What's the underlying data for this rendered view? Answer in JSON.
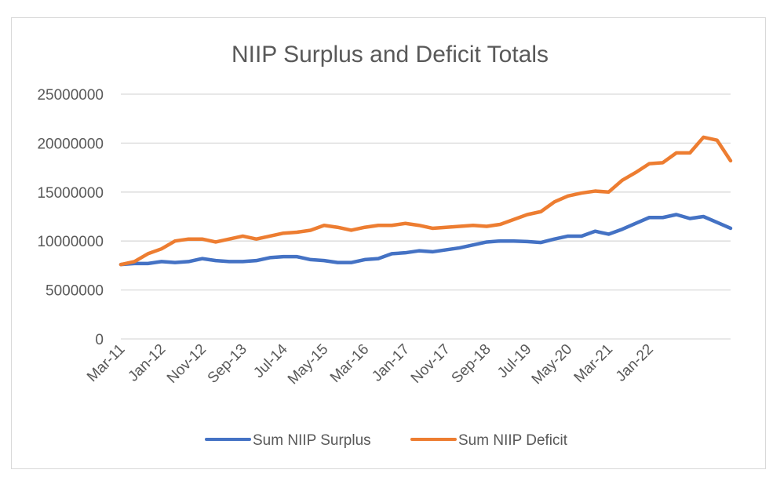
{
  "chart_data": {
    "type": "line",
    "title": "NIIP Surplus and Deficit Totals",
    "xlabel": "",
    "ylabel": "",
    "ylim": [
      0,
      25000000
    ],
    "y_ticks": [
      0,
      5000000,
      10000000,
      15000000,
      20000000,
      25000000
    ],
    "y_tick_labels": [
      "0",
      "5000000",
      "10000000",
      "15000000",
      "20000000",
      "25000000"
    ],
    "x_tick_labels": [
      "Mar-11",
      "Jan-12",
      "Nov-12",
      "Sep-13",
      "Jul-14",
      "May-15",
      "Mar-16",
      "Jan-17",
      "Nov-17",
      "Sep-18",
      "Jul-19",
      "May-20",
      "Mar-21",
      "Jan-22"
    ],
    "x_tick_step": 3,
    "grid": true,
    "legend_position": "bottom",
    "series": [
      {
        "name": "Sum NIIP Surplus",
        "color": "#4472c4",
        "values": [
          7600000,
          7700000,
          7700000,
          7900000,
          7800000,
          7900000,
          8200000,
          8000000,
          7900000,
          7900000,
          8000000,
          8300000,
          8400000,
          8400000,
          8100000,
          8000000,
          7800000,
          7800000,
          8100000,
          8200000,
          8700000,
          8800000,
          9000000,
          8900000,
          9100000,
          9300000,
          9600000,
          9900000,
          10000000,
          10000000,
          9950000,
          9850000,
          10200000,
          10500000,
          10500000,
          11000000,
          10700000,
          11200000,
          11800000,
          12400000,
          12400000,
          12700000,
          12300000,
          12500000,
          11900000,
          11300000
        ]
      },
      {
        "name": "Sum NIIP Deficit",
        "color": "#ed7d31",
        "values": [
          7600000,
          7900000,
          8700000,
          9200000,
          10000000,
          10200000,
          10200000,
          9900000,
          10200000,
          10500000,
          10200000,
          10500000,
          10800000,
          10900000,
          11100000,
          11600000,
          11400000,
          11100000,
          11400000,
          11600000,
          11600000,
          11800000,
          11600000,
          11300000,
          11400000,
          11500000,
          11600000,
          11500000,
          11700000,
          12200000,
          12700000,
          13000000,
          14000000,
          14600000,
          14900000,
          15100000,
          15000000,
          16200000,
          17000000,
          17900000,
          18000000,
          19000000,
          19000000,
          20600000,
          20300000,
          18200000
        ]
      }
    ]
  }
}
